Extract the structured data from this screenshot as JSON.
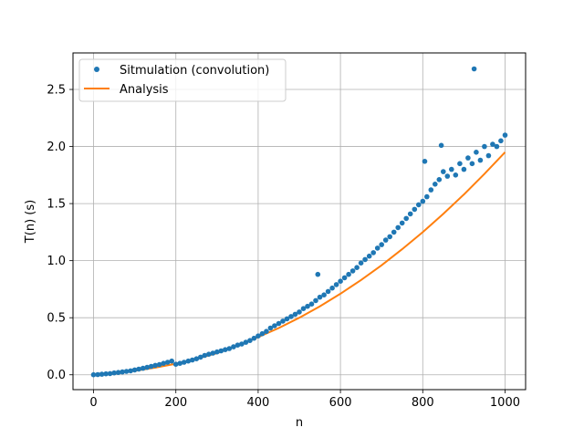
{
  "chart_data": {
    "type": "scatter",
    "xlabel": "n",
    "ylabel": "T(n) (s)",
    "xlim": [
      -50,
      1050
    ],
    "ylim": [
      -0.13,
      2.82
    ],
    "xticks": [
      0,
      200,
      400,
      600,
      800,
      1000
    ],
    "yticks": [
      0.0,
      0.5,
      1.0,
      1.5,
      2.0,
      2.5
    ],
    "xtick_labels": [
      "0",
      "200",
      "400",
      "600",
      "800",
      "1000"
    ],
    "ytick_labels": [
      "0.0",
      "0.5",
      "1.0",
      "1.5",
      "2.0",
      "2.5"
    ],
    "grid": true,
    "legend_position": "top-left",
    "colors": {
      "simulation": "#1f77b4",
      "analysis": "#ff7f0e"
    },
    "series": [
      {
        "name": "Sitmulation (convolution)",
        "kind": "points",
        "x": [
          0,
          10,
          20,
          30,
          40,
          50,
          60,
          70,
          80,
          90,
          100,
          110,
          120,
          130,
          140,
          150,
          160,
          170,
          180,
          190,
          200,
          210,
          220,
          230,
          240,
          250,
          260,
          270,
          280,
          290,
          300,
          310,
          320,
          330,
          340,
          350,
          360,
          370,
          380,
          390,
          400,
          410,
          420,
          430,
          440,
          450,
          460,
          470,
          480,
          490,
          500,
          510,
          520,
          530,
          540,
          545,
          550,
          560,
          570,
          580,
          590,
          600,
          610,
          620,
          630,
          640,
          650,
          660,
          670,
          680,
          690,
          700,
          710,
          720,
          730,
          740,
          750,
          760,
          770,
          780,
          790,
          800,
          805,
          810,
          820,
          830,
          840,
          845,
          850,
          860,
          870,
          880,
          890,
          900,
          910,
          920,
          925,
          930,
          940,
          950,
          960,
          970,
          980,
          990,
          1000
        ],
        "y": [
          0.0,
          0.002,
          0.005,
          0.008,
          0.011,
          0.016,
          0.02,
          0.025,
          0.03,
          0.035,
          0.043,
          0.05,
          0.057,
          0.065,
          0.074,
          0.083,
          0.09,
          0.1,
          0.11,
          0.12,
          0.092,
          0.1,
          0.11,
          0.12,
          0.13,
          0.14,
          0.155,
          0.17,
          0.18,
          0.19,
          0.2,
          0.21,
          0.22,
          0.23,
          0.245,
          0.26,
          0.27,
          0.285,
          0.3,
          0.32,
          0.34,
          0.36,
          0.38,
          0.41,
          0.43,
          0.45,
          0.47,
          0.49,
          0.51,
          0.53,
          0.55,
          0.58,
          0.6,
          0.62,
          0.65,
          0.88,
          0.68,
          0.7,
          0.73,
          0.76,
          0.79,
          0.82,
          0.85,
          0.88,
          0.91,
          0.94,
          0.98,
          1.01,
          1.04,
          1.07,
          1.11,
          1.14,
          1.18,
          1.21,
          1.25,
          1.29,
          1.33,
          1.37,
          1.41,
          1.45,
          1.49,
          1.52,
          1.87,
          1.56,
          1.62,
          1.67,
          1.71,
          2.01,
          1.78,
          1.74,
          1.8,
          1.75,
          1.85,
          1.8,
          1.9,
          1.85,
          2.68,
          1.95,
          1.88,
          2.0,
          1.92,
          2.02,
          2.0,
          2.05,
          2.1
        ]
      },
      {
        "name": "Analysis",
        "kind": "line",
        "x": [
          0,
          50,
          100,
          150,
          200,
          250,
          300,
          350,
          400,
          450,
          500,
          550,
          600,
          650,
          700,
          750,
          800,
          850,
          900,
          950,
          1000
        ],
        "y": [
          0.0,
          0.012,
          0.035,
          0.063,
          0.097,
          0.14,
          0.19,
          0.255,
          0.33,
          0.41,
          0.5,
          0.6,
          0.71,
          0.83,
          0.96,
          1.1,
          1.25,
          1.41,
          1.58,
          1.76,
          1.95
        ]
      }
    ]
  }
}
